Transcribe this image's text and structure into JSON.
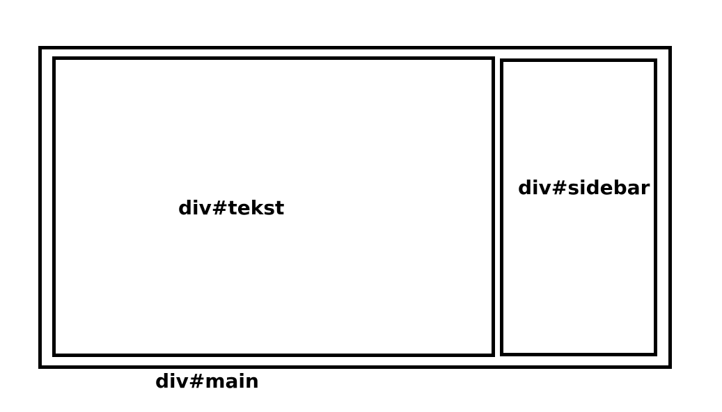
{
  "labels": {
    "main": "div#main",
    "tekst": "div#tekst",
    "sidebar": "div#sidebar"
  },
  "colors": {
    "stroke": "#000000",
    "background": "#ffffff"
  }
}
